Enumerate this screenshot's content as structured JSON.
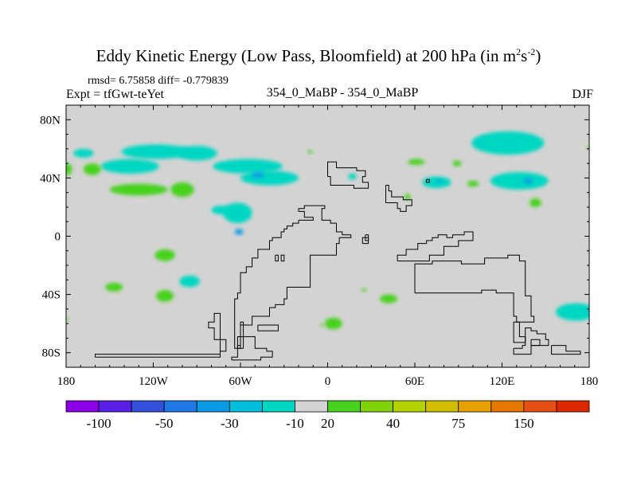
{
  "title": {
    "prefix": "Eddy Kinetic Energy (Low Pass, Bloomfield) at 200 hPa (in m",
    "sup1": "2",
    "mid": "s",
    "sup2": "-2",
    "suffix": ")"
  },
  "stats": "rmsd= 6.75858 diff= -0.779839",
  "expt_label": "Expt = tfGwt-teYet",
  "left_label": "354_0_MaBP - 354_0_MaBP",
  "season": "DJF",
  "colors": {
    "background_fill": "#d3d3d3",
    "frame": "#000000",
    "coast": "#000000"
  },
  "chart_data": {
    "type": "heatmap",
    "projection": "cylindrical-equidistant",
    "xlim": [
      -180,
      180
    ],
    "ylim": [
      -90,
      90
    ],
    "x_ticks": [
      {
        "value": -180,
        "label": "180"
      },
      {
        "value": -120,
        "label": "120W"
      },
      {
        "value": -60,
        "label": "60W"
      },
      {
        "value": 0,
        "label": "0"
      },
      {
        "value": 60,
        "label": "60E"
      },
      {
        "value": 120,
        "label": "120E"
      },
      {
        "value": 180,
        "label": "180"
      }
    ],
    "y_ticks": [
      {
        "value": 80,
        "label": "80N"
      },
      {
        "value": 40,
        "label": "40N"
      },
      {
        "value": 0,
        "label": "0"
      },
      {
        "value": -40,
        "label": "40S"
      },
      {
        "value": -80,
        "label": "80S"
      }
    ],
    "colorbar": {
      "colors": [
        "#8c00e6",
        "#5a1ee6",
        "#3250dc",
        "#1e78e6",
        "#0a9be6",
        "#00bedc",
        "#00d7c3",
        "#d3d3d3",
        "#46d21e",
        "#82d20a",
        "#b4d200",
        "#d2be00",
        "#e6a000",
        "#e67800",
        "#e65014",
        "#dc2800"
      ],
      "labels": [
        {
          "after_bin": 1,
          "text": "-100"
        },
        {
          "after_bin": 3,
          "text": "-50"
        },
        {
          "after_bin": 5,
          "text": "-30"
        },
        {
          "after_bin": 7,
          "text": "-10"
        },
        {
          "after_bin": 8,
          "text": "20"
        },
        {
          "after_bin": 10,
          "text": "40"
        },
        {
          "after_bin": 12,
          "text": "75"
        },
        {
          "after_bin": 14,
          "text": "150"
        }
      ]
    },
    "anomaly_patches": [
      {
        "color": "#00d7c3",
        "lon": -168,
        "lat": 57,
        "rlon": 7,
        "rlat": 3
      },
      {
        "color": "#00d7c3",
        "lon": -118,
        "lat": 58,
        "rlon": 24,
        "rlat": 5
      },
      {
        "color": "#00d7c3",
        "lon": -136,
        "lat": 48,
        "rlon": 20,
        "rlat": 5
      },
      {
        "color": "#00d7c3",
        "lon": -90,
        "lat": 57,
        "rlon": 14,
        "rlat": 5
      },
      {
        "color": "#00d7c3",
        "lon": -55,
        "lat": 48,
        "rlon": 24,
        "rlat": 5
      },
      {
        "color": "#00d7c3",
        "lon": -40,
        "lat": 40,
        "rlon": 20,
        "rlat": 5
      },
      {
        "color": "#0a9be6",
        "lon": -48,
        "lat": 42,
        "rlon": 4,
        "rlat": 2
      },
      {
        "color": "#00d7c3",
        "lon": -62,
        "lat": 16,
        "rlon": 10,
        "rlat": 7
      },
      {
        "color": "#00d7c3",
        "lon": -73,
        "lat": 18,
        "rlon": 7,
        "rlat": 3
      },
      {
        "color": "#0a9be6",
        "lon": -61,
        "lat": 3,
        "rlon": 3,
        "rlat": 2
      },
      {
        "color": "#46d21e",
        "lon": -162,
        "lat": 46,
        "rlon": 6,
        "rlat": 4
      },
      {
        "color": "#46d21e",
        "lon": -130,
        "lat": 32,
        "rlon": 20,
        "rlat": 4
      },
      {
        "color": "#46d21e",
        "lon": -100,
        "lat": 32,
        "rlon": 8,
        "rlat": 5
      },
      {
        "color": "#46d21e",
        "lon": -112,
        "lat": -13,
        "rlon": 7,
        "rlat": 4
      },
      {
        "color": "#46d21e",
        "lon": -147,
        "lat": -35,
        "rlon": 6,
        "rlat": 3
      },
      {
        "color": "#46d21e",
        "lon": -112,
        "lat": -41,
        "rlon": 6,
        "rlat": 4
      },
      {
        "color": "#00d7c3",
        "lon": -95,
        "lat": -31,
        "rlon": 7,
        "rlat": 4
      },
      {
        "color": "#46d21e",
        "lon": -12,
        "lat": 58,
        "rlon": 2,
        "rlat": 1
      },
      {
        "color": "#46d21e",
        "lon": 4,
        "lat": -60,
        "rlon": 6,
        "rlat": 4
      },
      {
        "color": "#46d21e",
        "lon": -4,
        "lat": -61,
        "rlon": 1,
        "rlat": 1
      },
      {
        "color": "#46d21e",
        "lon": 42,
        "lat": -43,
        "rlon": 6,
        "rlat": 3
      },
      {
        "color": "#46d21e",
        "lon": 25,
        "lat": -37,
        "rlon": 2,
        "rlat": 1
      },
      {
        "color": "#46d21e",
        "lon": 61,
        "lat": 51,
        "rlon": 6,
        "rlat": 2
      },
      {
        "color": "#46d21e",
        "lon": 89,
        "lat": 50,
        "rlon": 3,
        "rlat": 2
      },
      {
        "color": "#00d7c3",
        "lon": 75,
        "lat": 37,
        "rlon": 10,
        "rlat": 4
      },
      {
        "color": "#0a9be6",
        "lon": 77,
        "lat": 38,
        "rlon": 2,
        "rlat": 1
      },
      {
        "color": "#00d7c3",
        "lon": 17,
        "lat": 41,
        "rlon": 3,
        "rlat": 2
      },
      {
        "color": "#46d21e",
        "lon": 55,
        "lat": 27,
        "rlon": 2,
        "rlat": 2
      },
      {
        "color": "#46d21e",
        "lon": 100,
        "lat": 36,
        "rlon": 4,
        "rlat": 2
      },
      {
        "color": "#00d7c3",
        "lon": 124,
        "lat": 64,
        "rlon": 25,
        "rlat": 8
      },
      {
        "color": "#00d7c3",
        "lon": 132,
        "lat": 38,
        "rlon": 20,
        "rlat": 6
      },
      {
        "color": "#0a9be6",
        "lon": 138,
        "lat": 38,
        "rlon": 3,
        "rlat": 2
      },
      {
        "color": "#46d21e",
        "lon": 143,
        "lat": 23,
        "rlon": 4,
        "rlat": 3
      },
      {
        "color": "#46d21e",
        "lon": 179,
        "lat": 61,
        "rlon": 1,
        "rlat": 1
      },
      {
        "color": "#00d7c3",
        "lon": 171,
        "lat": -52,
        "rlon": 14,
        "rlat": 6
      },
      {
        "color": "#46d21e",
        "lon": -179,
        "lat": -57,
        "rlon": 1,
        "rlat": 1
      },
      {
        "color": "#46d21e",
        "lon": -179,
        "lat": 46,
        "rlon": 3,
        "rlat": 4
      }
    ],
    "coastlines": [
      [
        [
          -20,
          11
        ],
        [
          -10,
          11
        ],
        [
          -10,
          13
        ],
        [
          -16,
          13
        ],
        [
          -16,
          15
        ],
        [
          -16,
          17
        ],
        [
          -20,
          17
        ],
        [
          -20,
          19
        ],
        [
          -16,
          19
        ],
        [
          -16,
          21
        ],
        [
          -2,
          21
        ],
        [
          -2,
          19
        ],
        [
          -4,
          19
        ],
        [
          -4,
          11
        ],
        [
          2,
          11
        ],
        [
          2,
          9
        ],
        [
          6,
          9
        ],
        [
          6,
          3
        ],
        [
          10,
          3
        ],
        [
          10,
          1
        ],
        [
          16,
          1
        ],
        [
          16,
          -1
        ],
        [
          8,
          -1
        ],
        [
          8,
          -5
        ],
        [
          6,
          -5
        ],
        [
          6,
          -13
        ],
        [
          -12,
          -13
        ],
        [
          -12,
          -35
        ],
        [
          -28,
          -35
        ],
        [
          -28,
          -43
        ],
        [
          -30,
          -43
        ],
        [
          -30,
          -47
        ],
        [
          -36,
          -47
        ],
        [
          -36,
          -49
        ],
        [
          -40,
          -49
        ],
        [
          -40,
          -55
        ],
        [
          -52,
          -55
        ],
        [
          -52,
          -61
        ],
        [
          -60,
          -61
        ],
        [
          -60,
          -77
        ],
        [
          -64,
          -77
        ],
        [
          -64,
          -43
        ],
        [
          -62,
          -43
        ],
        [
          -62,
          -39
        ],
        [
          -60,
          -39
        ],
        [
          -60,
          -25
        ],
        [
          -56,
          -25
        ],
        [
          -56,
          -21
        ],
        [
          -52,
          -21
        ],
        [
          -52,
          -15
        ],
        [
          -48,
          -15
        ],
        [
          -48,
          -9
        ],
        [
          -40,
          -9
        ],
        [
          -40,
          -3
        ],
        [
          -38,
          -3
        ],
        [
          -38,
          -1
        ],
        [
          -32,
          -1
        ],
        [
          -32,
          3
        ],
        [
          -30,
          3
        ],
        [
          -30,
          5
        ],
        [
          -28,
          5
        ],
        [
          -28,
          7
        ],
        [
          -24,
          7
        ],
        [
          -24,
          9
        ],
        [
          -20,
          9
        ],
        [
          -20,
          11
        ]
      ],
      [
        [
          -66,
          -85
        ],
        [
          -46,
          -85
        ],
        [
          -46,
          -83
        ],
        [
          -38,
          -83
        ],
        [
          -38,
          -79
        ],
        [
          -42,
          -79
        ],
        [
          -42,
          -77
        ],
        [
          -50,
          -77
        ],
        [
          -50,
          -69
        ],
        [
          -62,
          -69
        ],
        [
          -62,
          -83
        ],
        [
          -66,
          -83
        ],
        [
          -66,
          -85
        ]
      ],
      [
        [
          -48,
          -61
        ],
        [
          -34,
          -61
        ],
        [
          -34,
          -65
        ],
        [
          -48,
          -65
        ],
        [
          -48,
          -61
        ]
      ],
      [
        [
          -58,
          -77
        ],
        [
          -58,
          -59
        ],
        [
          -60,
          -59
        ],
        [
          -60,
          -75
        ],
        [
          -62,
          -75
        ],
        [
          -62,
          -77
        ],
        [
          -58,
          -77
        ]
      ],
      [
        [
          -160,
          -83
        ],
        [
          -74,
          -83
        ],
        [
          -74,
          -71
        ],
        [
          -78,
          -71
        ],
        [
          -78,
          -63
        ],
        [
          -82,
          -63
        ],
        [
          -82,
          -59
        ],
        [
          -78,
          -59
        ],
        [
          -78,
          -53
        ],
        [
          -74,
          -53
        ],
        [
          -74,
          -71
        ],
        [
          -70,
          -71
        ],
        [
          -70,
          -79
        ],
        [
          -74,
          -79
        ],
        [
          -74,
          -81
        ],
        [
          -160,
          -81
        ],
        [
          -160,
          -83
        ]
      ],
      [
        [
          -32,
          -17
        ],
        [
          -32,
          -13
        ],
        [
          -30,
          -13
        ],
        [
          -30,
          -17
        ],
        [
          -32,
          -17
        ]
      ],
      [
        [
          -36,
          -13
        ],
        [
          -36,
          -17
        ],
        [
          -34,
          -17
        ],
        [
          -34,
          -13
        ],
        [
          -36,
          -13
        ]
      ],
      [
        [
          0,
          41
        ],
        [
          0,
          51
        ],
        [
          6,
          51
        ],
        [
          6,
          47
        ],
        [
          20,
          47
        ],
        [
          20,
          45
        ],
        [
          26,
          45
        ],
        [
          26,
          41
        ],
        [
          24,
          41
        ],
        [
          24,
          37
        ],
        [
          28,
          37
        ],
        [
          28,
          33
        ],
        [
          18,
          33
        ],
        [
          18,
          35
        ],
        [
          2,
          35
        ],
        [
          2,
          41
        ],
        [
          0,
          41
        ]
      ],
      [
        [
          40,
          35
        ],
        [
          40,
          23
        ],
        [
          48,
          23
        ],
        [
          48,
          19
        ],
        [
          50,
          19
        ],
        [
          50,
          17
        ],
        [
          54,
          17
        ],
        [
          54,
          21
        ],
        [
          58,
          21
        ],
        [
          58,
          25
        ],
        [
          52,
          25
        ],
        [
          52,
          27
        ],
        [
          44,
          27
        ],
        [
          44,
          31
        ],
        [
          42,
          31
        ],
        [
          42,
          35
        ],
        [
          40,
          35
        ]
      ],
      [
        [
          24,
          -5
        ],
        [
          28,
          -5
        ],
        [
          28,
          -1
        ],
        [
          24,
          -1
        ],
        [
          24,
          -5
        ]
      ],
      [
        [
          26,
          1
        ],
        [
          26,
          -3
        ],
        [
          28,
          -3
        ],
        [
          28,
          1
        ],
        [
          26,
          1
        ]
      ],
      [
        [
          48,
          -17
        ],
        [
          48,
          -13
        ],
        [
          54,
          -13
        ],
        [
          54,
          -9
        ],
        [
          62,
          -9
        ],
        [
          62,
          -5
        ],
        [
          68,
          -5
        ],
        [
          68,
          -3
        ],
        [
          72,
          -3
        ],
        [
          72,
          -1
        ],
        [
          76,
          -1
        ],
        [
          76,
          1
        ],
        [
          82,
          1
        ],
        [
          82,
          -1
        ],
        [
          86,
          -1
        ],
        [
          86,
          1
        ],
        [
          94,
          1
        ],
        [
          94,
          3
        ],
        [
          100,
          3
        ],
        [
          100,
          -3
        ],
        [
          90,
          -3
        ],
        [
          90,
          -7
        ],
        [
          80,
          -7
        ],
        [
          80,
          -13
        ],
        [
          70,
          -13
        ],
        [
          70,
          -17
        ],
        [
          48,
          -17
        ]
      ],
      [
        [
          60,
          -39
        ],
        [
          60,
          -19
        ],
        [
          72,
          -19
        ],
        [
          72,
          -17
        ],
        [
          92,
          -17
        ],
        [
          92,
          -19
        ],
        [
          108,
          -19
        ],
        [
          108,
          -15
        ],
        [
          124,
          -15
        ],
        [
          124,
          -13
        ],
        [
          132,
          -13
        ],
        [
          132,
          -17
        ],
        [
          136,
          -17
        ],
        [
          136,
          -41
        ],
        [
          140,
          -41
        ],
        [
          140,
          -55
        ],
        [
          142,
          -55
        ],
        [
          142,
          -59
        ],
        [
          130,
          -59
        ],
        [
          130,
          -55
        ],
        [
          128,
          -55
        ],
        [
          128,
          -39
        ],
        [
          116,
          -39
        ],
        [
          116,
          -37
        ],
        [
          106,
          -37
        ],
        [
          106,
          -39
        ],
        [
          60,
          -39
        ]
      ],
      [
        [
          128,
          -73
        ],
        [
          128,
          -59
        ],
        [
          132,
          -59
        ],
        [
          132,
          -69
        ],
        [
          136,
          -69
        ],
        [
          136,
          -73
        ],
        [
          128,
          -73
        ]
      ],
      [
        [
          128,
          -77
        ],
        [
          128,
          -81
        ],
        [
          140,
          -81
        ],
        [
          140,
          -75
        ],
        [
          152,
          -75
        ],
        [
          152,
          -71
        ],
        [
          150,
          -71
        ],
        [
          150,
          -67
        ],
        [
          144,
          -67
        ],
        [
          144,
          -65
        ],
        [
          140,
          -65
        ],
        [
          140,
          -63
        ],
        [
          136,
          -63
        ],
        [
          136,
          -75
        ],
        [
          134,
          -75
        ],
        [
          134,
          -77
        ],
        [
          128,
          -77
        ]
      ],
      [
        [
          140,
          -71
        ],
        [
          146,
          -71
        ],
        [
          146,
          -75
        ],
        [
          140,
          -75
        ],
        [
          140,
          -71
        ]
      ],
      [
        [
          154,
          -75
        ],
        [
          164,
          -75
        ],
        [
          164,
          -79
        ],
        [
          174,
          -79
        ],
        [
          174,
          -81
        ],
        [
          154,
          -81
        ],
        [
          154,
          -75
        ]
      ],
      [
        [
          68,
          39
        ],
        [
          68,
          37
        ],
        [
          70,
          37
        ],
        [
          70,
          39
        ],
        [
          68,
          39
        ]
      ]
    ]
  }
}
